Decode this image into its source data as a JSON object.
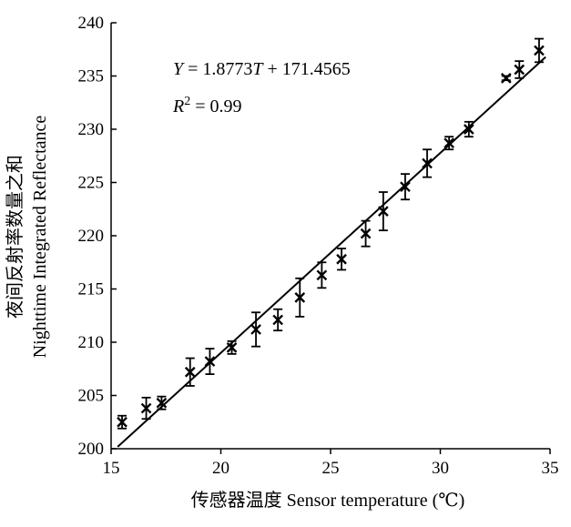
{
  "chart_data": {
    "type": "scatter",
    "x": [
      15.5,
      16.6,
      17.3,
      18.6,
      19.5,
      20.5,
      21.6,
      22.6,
      23.6,
      24.6,
      25.5,
      26.6,
      27.4,
      28.4,
      29.4,
      30.4,
      31.3,
      33.0,
      33.6,
      34.5
    ],
    "y": [
      202.5,
      203.8,
      204.3,
      207.2,
      208.2,
      209.5,
      211.2,
      212.1,
      214.2,
      216.3,
      217.8,
      220.2,
      222.3,
      224.6,
      226.8,
      228.7,
      230.0,
      234.8,
      235.6,
      237.4
    ],
    "error": [
      0.6,
      1.0,
      0.6,
      1.3,
      1.2,
      0.6,
      1.6,
      1.0,
      1.8,
      1.2,
      1.0,
      1.2,
      1.8,
      1.2,
      1.3,
      0.6,
      0.7,
      0.2,
      0.8,
      1.1
    ],
    "trendline": {
      "slope": 1.8773,
      "intercept": 171.4565,
      "x_range": [
        15.3,
        34.8
      ]
    },
    "xlim": [
      15,
      35
    ],
    "ylim": [
      200,
      240
    ],
    "xticks": [
      "15",
      "20",
      "25",
      "30",
      "35"
    ],
    "yticks": [
      "200",
      "205",
      "210",
      "215",
      "220",
      "225",
      "230",
      "235",
      "240"
    ],
    "xlabel": "传感器温度 Sensor temperature (℃)",
    "ylabel_line1": "夜间反射率数量之和",
    "ylabel_line2": "Nighttime Integrated Reflectance",
    "equation": {
      "y_var": "Y",
      "rhs_prefix": " = 1.8773",
      "t_var": "T",
      "rhs_suffix": " + 171.4565"
    },
    "r_squared": {
      "r_var": "R",
      "exponent": "2",
      "value_text": " = 0.99"
    },
    "grid": false,
    "legend": "none"
  }
}
